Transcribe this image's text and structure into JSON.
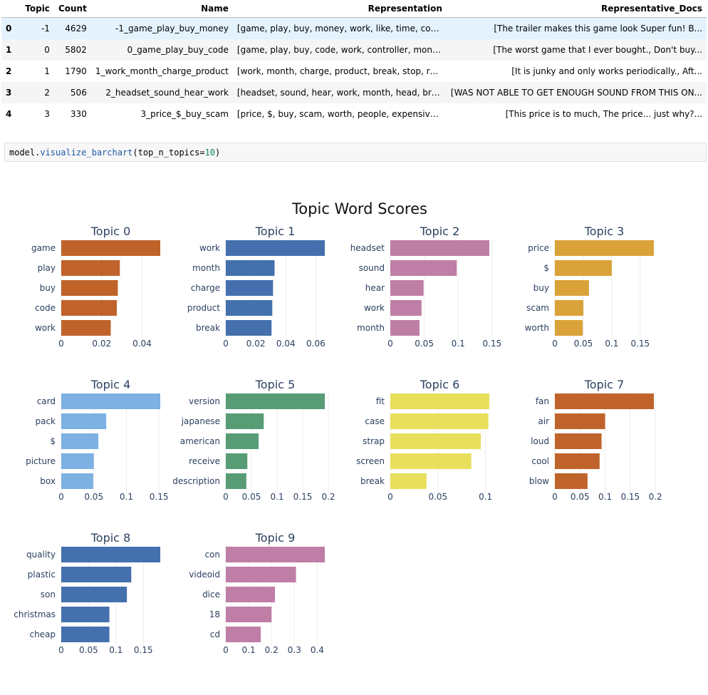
{
  "table": {
    "columns": [
      "",
      "Topic",
      "Count",
      "Name",
      "Representation",
      "Representative_Docs"
    ],
    "rows": [
      {
        "idx": "0",
        "topic": "-1",
        "count": "4629",
        "name": "-1_game_play_buy_money",
        "rep": "[game, play, buy, money, work, like, time, con...",
        "docs": "[The trailer makes this game look Super fun! B..."
      },
      {
        "idx": "1",
        "topic": "0",
        "count": "5802",
        "name": "0_game_play_buy_code",
        "rep": "[game, play, buy, code, work, controller, mone...",
        "docs": "[The worst game that I ever bought., Don't buy..."
      },
      {
        "idx": "2",
        "topic": "1",
        "count": "1790",
        "name": "1_work_month_charge_product",
        "rep": "[work, month, charge, product, break, stop, re...",
        "docs": "[It is junky and only works periodically., Aft..."
      },
      {
        "idx": "3",
        "topic": "2",
        "count": "506",
        "name": "2_headset_sound_hear_work",
        "rep": "[headset, sound, hear, work, month, head, brea...",
        "docs": "[WAS NOT ABLE TO GET ENOUGH SOUND FROM THIS ON..."
      },
      {
        "idx": "4",
        "topic": "3",
        "count": "330",
        "name": "3_price_$_buy_scam",
        "rep": "[price, $, buy, scam, worth, people, expensive...",
        "docs": "[This price is to much, The price... just why?..."
      }
    ]
  },
  "code": {
    "obj": "model.",
    "fn": "visualize_barchart",
    "open": "(",
    "kw": "top_n_topics",
    "eq": "=",
    "num": "10",
    "close": ")"
  },
  "chart_data": {
    "type": "bar",
    "title": "Topic Word Scores",
    "orientation": "horizontal",
    "subplots": [
      {
        "title": "Topic 0",
        "color": "#C0632B",
        "words": [
          "game",
          "play",
          "buy",
          "code",
          "work"
        ],
        "values": [
          0.049,
          0.029,
          0.028,
          0.0275,
          0.0245
        ],
        "xmax": 0.049,
        "ticks": [
          0,
          0.02,
          0.04
        ],
        "tick_labels": [
          "0",
          "0.02",
          "0.04"
        ]
      },
      {
        "title": "Topic 1",
        "color": "#4470AD",
        "words": [
          "work",
          "month",
          "charge",
          "product",
          "break"
        ],
        "values": [
          0.066,
          0.0325,
          0.0315,
          0.031,
          0.0305
        ],
        "xmax": 0.066,
        "ticks": [
          0,
          0.02,
          0.04,
          0.06
        ],
        "tick_labels": [
          "0",
          "0.02",
          "0.04",
          "0.06"
        ]
      },
      {
        "title": "Topic 2",
        "color": "#BF7EA6",
        "words": [
          "headset",
          "sound",
          "hear",
          "work",
          "month"
        ],
        "values": [
          0.146,
          0.098,
          0.049,
          0.046,
          0.043
        ],
        "xmax": 0.146,
        "ticks": [
          0,
          0.05,
          0.1,
          0.15
        ],
        "tick_labels": [
          "0",
          "0.05",
          "0.1",
          "0.15"
        ]
      },
      {
        "title": "Topic 3",
        "color": "#D9A33A",
        "words": [
          "price",
          "$",
          "buy",
          "scam",
          "worth"
        ],
        "values": [
          0.174,
          0.1,
          0.06,
          0.05,
          0.049
        ],
        "xmax": 0.174,
        "ticks": [
          0,
          0.05,
          0.1,
          0.15
        ],
        "tick_labels": [
          "0",
          "0.05",
          "0.1",
          "0.15"
        ]
      },
      {
        "title": "Topic 4",
        "color": "#7DB0E3",
        "words": [
          "card",
          "pack",
          "$",
          "picture",
          "box"
        ],
        "values": [
          0.152,
          0.069,
          0.057,
          0.05,
          0.049
        ],
        "xmax": 0.152,
        "ticks": [
          0,
          0.05,
          0.1,
          0.15
        ],
        "tick_labels": [
          "0",
          "0.05",
          "0.1",
          "0.15"
        ]
      },
      {
        "title": "Topic 5",
        "color": "#579C75",
        "words": [
          "version",
          "japanese",
          "american",
          "receive",
          "description"
        ],
        "values": [
          0.193,
          0.074,
          0.064,
          0.042,
          0.04
        ],
        "xmax": 0.193,
        "ticks": [
          0,
          0.05,
          0.1,
          0.15,
          0.2
        ],
        "tick_labels": [
          "0",
          "0.05",
          "0.1",
          "0.15",
          "0.2"
        ]
      },
      {
        "title": "Topic 6",
        "color": "#E8DF5C",
        "words": [
          "fit",
          "case",
          "strap",
          "screen",
          "break"
        ],
        "values": [
          0.104,
          0.103,
          0.095,
          0.085,
          0.038
        ],
        "xmax": 0.104,
        "ticks": [
          0,
          0.05,
          0.1
        ],
        "tick_labels": [
          "0",
          "0.05",
          "0.1"
        ]
      },
      {
        "title": "Topic 7",
        "color": "#C0632B",
        "words": [
          "fan",
          "air",
          "loud",
          "cool",
          "blow"
        ],
        "values": [
          0.197,
          0.1,
          0.093,
          0.089,
          0.065
        ],
        "xmax": 0.197,
        "ticks": [
          0,
          0.05,
          0.1,
          0.15,
          0.2
        ],
        "tick_labels": [
          "0",
          "0.05",
          "0.1",
          "0.15",
          "0.2"
        ]
      },
      {
        "title": "Topic 8",
        "color": "#4470AD",
        "words": [
          "quality",
          "plastic",
          "son",
          "christmas",
          "cheap"
        ],
        "values": [
          0.181,
          0.128,
          0.12,
          0.088,
          0.088
        ],
        "xmax": 0.181,
        "ticks": [
          0,
          0.05,
          0.1,
          0.15
        ],
        "tick_labels": [
          "0",
          "0.05",
          "0.1",
          "0.15"
        ]
      },
      {
        "title": "Topic 9",
        "color": "#BF7EA6",
        "words": [
          "con",
          "videoid",
          "dice",
          "18",
          "cd"
        ],
        "values": [
          0.433,
          0.307,
          0.215,
          0.2,
          0.153
        ],
        "xmax": 0.433,
        "ticks": [
          0,
          0.1,
          0.2,
          0.3,
          0.4
        ],
        "tick_labels": [
          "0",
          "0.1",
          "0.2",
          "0.3",
          "0.4"
        ]
      }
    ]
  }
}
